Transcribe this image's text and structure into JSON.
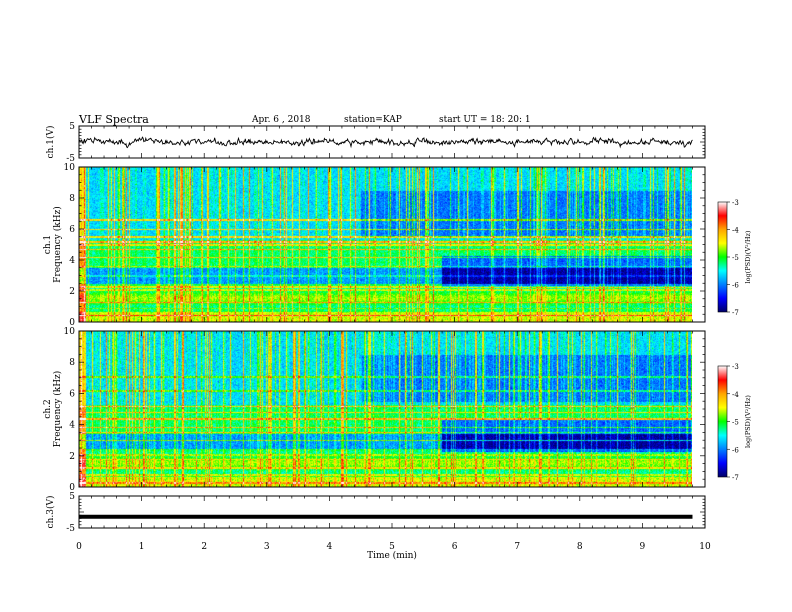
{
  "header": {
    "title": "VLF Spectra",
    "date": "Apr. 6 , 2018",
    "station": "station=KAP",
    "start_ut": "start UT =   18: 20: 1"
  },
  "chart_data": [
    {
      "type": "line",
      "panel": "channel-1-waveform",
      "ylabel": "ch.1(V)",
      "ylim": [
        -5,
        5
      ],
      "yticks": [
        "5",
        "-5"
      ],
      "xlim": [
        0,
        10
      ],
      "color": "#000000",
      "description_values": "noisy trace fluctuating roughly between -1.5 V and +1.5 V around 0 V, ending at 9.8 min"
    },
    {
      "type": "heatmap",
      "panel": "channel-1-spectrogram",
      "ylabel": "ch.1",
      "ylabel2": "Frequency (kHz)",
      "ylim": [
        0,
        10
      ],
      "yticks": [
        "0",
        "2",
        "4",
        "6",
        "8",
        "10"
      ],
      "xlim": [
        0,
        10
      ],
      "data_end_min": 9.8,
      "colorbar": {
        "label": "log(PSD)(V²/Hz)",
        "range": [
          -7,
          -3
        ],
        "ticks": [
          "-3",
          "-4",
          "-5",
          "-6",
          "-7"
        ],
        "colors": [
          "#ffffff",
          "#ff0000",
          "#ffa500",
          "#ffff00",
          "#00ff00",
          "#00ffff",
          "#0080ff",
          "#0000ff",
          "#000066"
        ]
      }
    },
    {
      "type": "heatmap",
      "panel": "channel-2-spectrogram",
      "ylabel": "ch.2",
      "ylabel2": "Frequency (kHz)",
      "ylim": [
        0,
        10
      ],
      "yticks": [
        "0",
        "2",
        "4",
        "6",
        "8",
        "10"
      ],
      "xlim": [
        0,
        10
      ],
      "data_end_min": 9.8,
      "colorbar": {
        "label": "log(PSD)(V²/Hz)",
        "range": [
          -7,
          -3
        ],
        "ticks": [
          "-3",
          "-4",
          "-5",
          "-6",
          "-7"
        ],
        "colors": [
          "#ffffff",
          "#ff0000",
          "#ffa500",
          "#ffff00",
          "#00ff00",
          "#00ffff",
          "#0080ff",
          "#0000ff",
          "#000066"
        ]
      }
    },
    {
      "type": "line",
      "panel": "channel-3-waveform",
      "ylabel": "ch.3(V)",
      "ylim": [
        -5,
        5
      ],
      "yticks": [
        "5",
        "-5"
      ],
      "xlim": [
        0,
        10
      ],
      "constant_value": -1.5,
      "color": "#000000"
    }
  ],
  "xaxis": {
    "label": "Time (min)",
    "ticks": [
      "0",
      "1",
      "2",
      "3",
      "4",
      "5",
      "6",
      "7",
      "8",
      "9",
      "10"
    ]
  }
}
